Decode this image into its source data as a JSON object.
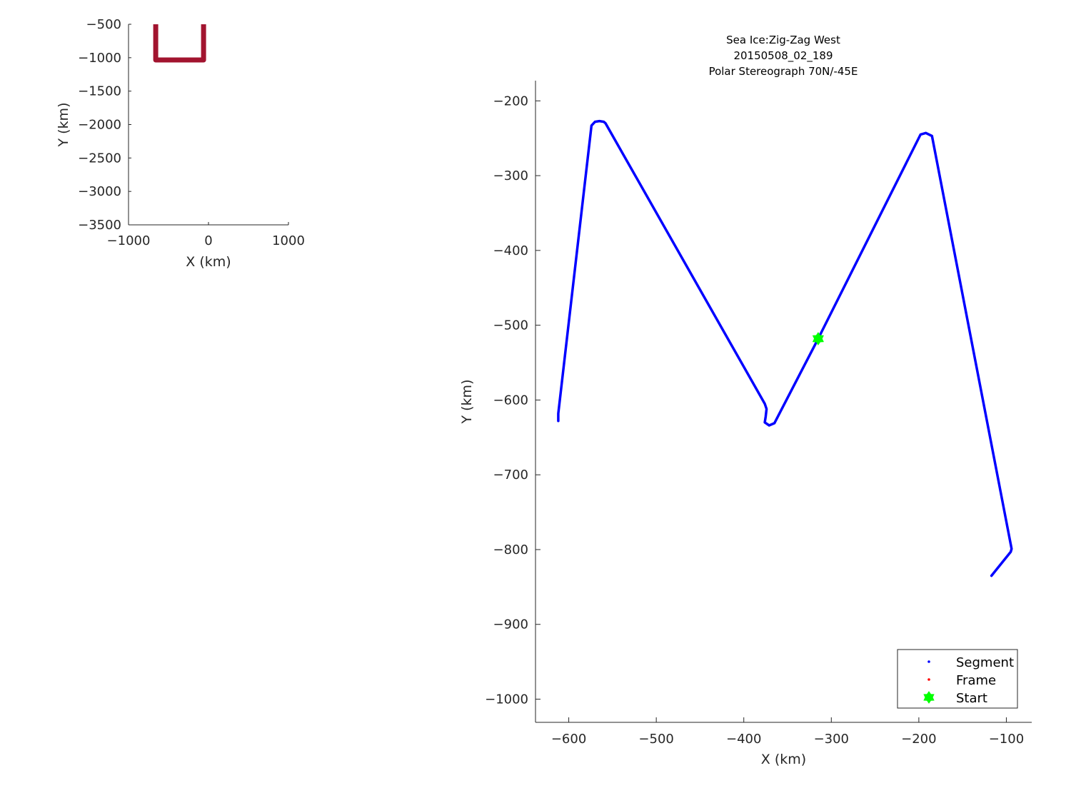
{
  "chart_data": [
    {
      "type": "line",
      "title": "",
      "xlabel": "X (km)",
      "ylabel": "Y (km)",
      "xlim": [
        -1000,
        1000
      ],
      "ylim": [
        -3500,
        -500
      ],
      "xticks": [
        -1000,
        0,
        1000
      ],
      "yticks": [
        -3500,
        -3000,
        -2500,
        -2000,
        -1500,
        -1000,
        -500
      ],
      "grid": false,
      "series": [
        {
          "color": "#a2142f",
          "x": [
            -660,
            -660,
            -62,
            -62
          ],
          "y": [
            -500,
            -1034,
            -1034,
            -500
          ]
        }
      ]
    },
    {
      "type": "line",
      "title": [
        "Sea Ice:Zig-Zag West",
        "20150508_02_189",
        "Polar Stereograph 70N/-45E"
      ],
      "xlabel": "X (km)",
      "ylabel": "Y (km)",
      "xlim": [
        -638,
        -71
      ],
      "ylim": [
        -1031,
        -173
      ],
      "xticks": [
        -600,
        -500,
        -400,
        -300,
        -200,
        -100
      ],
      "yticks": [
        -1000,
        -900,
        -800,
        -700,
        -600,
        -500,
        -400,
        -300,
        -200
      ],
      "grid": false,
      "legend_position": "bottom-right",
      "series": [
        {
          "name": "Segment",
          "color": "#0000ff",
          "x": [
            -612,
            -612,
            -574,
            -570,
            -565,
            -560,
            -558,
            -376,
            -374,
            -375,
            -376,
            -371,
            -365,
            -315,
            -198,
            -192,
            -185,
            -94,
            -95,
            -117
          ],
          "y": [
            -628,
            -618,
            -233,
            -228,
            -227,
            -228,
            -230,
            -605,
            -612,
            -622,
            -630,
            -634,
            -631,
            -518,
            -245,
            -243,
            -247,
            -799,
            -803,
            -835
          ]
        },
        {
          "name": "Frame",
          "color": "#ff0000",
          "x": [],
          "y": []
        },
        {
          "name": "Start",
          "color": "#00ff00",
          "marker": "hexagram",
          "x": [
            -315
          ],
          "y": [
            -518
          ]
        }
      ]
    }
  ]
}
